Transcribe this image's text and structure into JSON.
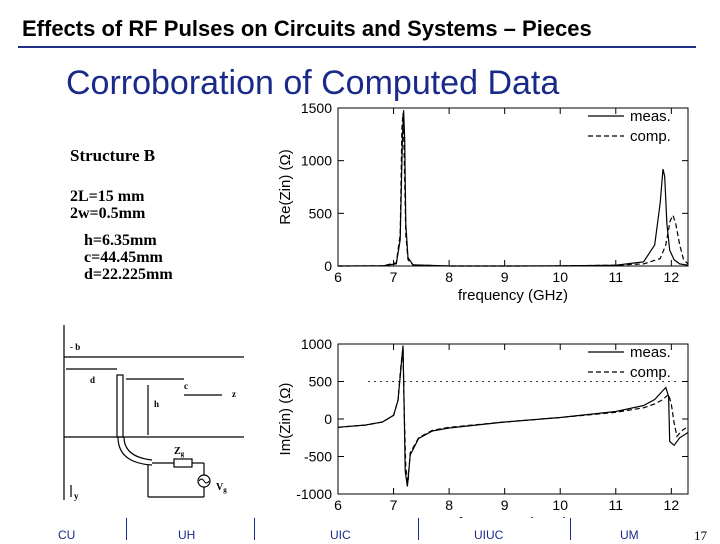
{
  "header": {
    "title": "Effects of RF Pulses on Circuits and Systems – Pieces"
  },
  "slide": {
    "title": "Corroboration of Computed Data"
  },
  "structure": {
    "heading": "Structure B",
    "params": [
      "2L=15 mm",
      "2w=0.5mm",
      "h=6.35mm",
      "c=44.45mm",
      "d=22.225mm"
    ]
  },
  "diagram": {
    "labels": {
      "b": "- b",
      "d": "d",
      "c": "c",
      "z": "z",
      "h": "h",
      "zg": "Z",
      "zg_sub": "g",
      "vg": "V",
      "vg_sub": "g",
      "y": "y"
    }
  },
  "chart_data": [
    {
      "type": "line",
      "title": "",
      "xlabel": "frequency (GHz)",
      "ylabel": "Re(Zin) (Ω)",
      "xlim": [
        6,
        12.3
      ],
      "ylim": [
        0,
        1500
      ],
      "xticks": [
        "6",
        "7",
        "8",
        "9",
        "10",
        "11",
        "12"
      ],
      "yticks": [
        "0",
        "500",
        "1000",
        "1500"
      ],
      "legend": {
        "placement": "top-right",
        "entries": [
          "meas.",
          "comp."
        ]
      },
      "series": [
        {
          "name": "meas.",
          "style": "solid",
          "x": [
            6.0,
            6.8,
            7.05,
            7.12,
            7.16,
            7.18,
            7.2,
            7.22,
            7.26,
            7.35,
            8.0,
            9.0,
            10.0,
            11.0,
            11.5,
            11.7,
            11.8,
            11.85,
            11.88,
            11.92,
            11.97,
            12.05,
            12.15,
            12.3
          ],
          "y": [
            0,
            2,
            20,
            250,
            1200,
            1480,
            1200,
            400,
            80,
            10,
            0,
            0,
            1,
            8,
            40,
            200,
            600,
            920,
            850,
            400,
            150,
            60,
            20,
            8
          ]
        },
        {
          "name": "comp.",
          "style": "dashed",
          "x": [
            6.0,
            6.8,
            7.05,
            7.12,
            7.15,
            7.17,
            7.19,
            7.22,
            7.26,
            7.35,
            8.0,
            9.0,
            10.0,
            11.0,
            11.5,
            11.8,
            11.9,
            11.98,
            12.03,
            12.08,
            12.15,
            12.22,
            12.3
          ],
          "y": [
            0,
            2,
            30,
            300,
            1300,
            1450,
            1100,
            300,
            60,
            10,
            0,
            0,
            1,
            8,
            20,
            70,
            200,
            430,
            480,
            400,
            200,
            60,
            20
          ]
        }
      ]
    },
    {
      "type": "line",
      "title": "",
      "xlabel": "frequency (GHz)",
      "ylabel": "Im(Zin) (Ω)",
      "xlim": [
        6,
        12.3
      ],
      "ylim": [
        -1000,
        1000
      ],
      "xticks": [
        "6",
        "7",
        "8",
        "9",
        "10",
        "11",
        "12"
      ],
      "yticks": [
        "-1000",
        "-500",
        "0",
        "500",
        "1000"
      ],
      "legend": {
        "placement": "top-right",
        "entries": [
          "meas.",
          "comp."
        ]
      },
      "series": [
        {
          "name": "meas.",
          "style": "solid",
          "x": [
            6.0,
            6.5,
            6.8,
            7.0,
            7.08,
            7.13,
            7.17,
            7.19,
            7.21,
            7.25,
            7.3,
            7.45,
            7.7,
            8.0,
            9.0,
            10.0,
            11.0,
            11.5,
            11.7,
            11.85,
            11.9,
            11.95,
            11.97,
            12.05,
            12.15,
            12.3
          ],
          "y": [
            -110,
            -80,
            -40,
            50,
            250,
            650,
            980,
            200,
            -700,
            -900,
            -480,
            -260,
            -160,
            -120,
            -40,
            20,
            100,
            180,
            260,
            380,
            420,
            300,
            -300,
            -350,
            -250,
            -180
          ]
        },
        {
          "name": "comp.",
          "style": "dashed",
          "x": [
            6.0,
            6.5,
            6.8,
            7.0,
            7.08,
            7.13,
            7.17,
            7.19,
            7.22,
            7.26,
            7.3,
            7.45,
            7.7,
            8.0,
            9.0,
            10.0,
            11.0,
            11.5,
            11.7,
            11.85,
            11.95,
            12.0,
            12.05,
            12.1,
            12.2,
            12.3
          ],
          "y": [
            -110,
            -80,
            -40,
            50,
            250,
            700,
            950,
            150,
            -650,
            -850,
            -450,
            -250,
            -150,
            -110,
            -40,
            20,
            90,
            150,
            200,
            260,
            330,
            200,
            -50,
            -230,
            -150,
            -100
          ]
        }
      ]
    }
  ],
  "footer": {
    "items": [
      "CU",
      "UH",
      "UIC",
      "UIUC",
      "UM"
    ],
    "page": "17"
  }
}
